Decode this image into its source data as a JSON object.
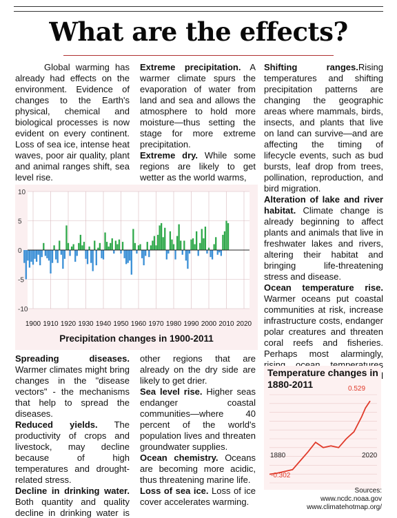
{
  "title": "What are the effects?",
  "col1_top": {
    "p1": "Global warming has already had effects on the environment. Evidence of changes to the Earth's physical, chemical and biological processes is now evident on every continent. Loss of sea ice, intense heat waves, poor air quality, plant and animal ranges shift, sea level rise."
  },
  "col2_top": {
    "extreme_precip_head": "Extreme precipitation.",
    "extreme_precip_body": " A warmer climate spurs the evaporation of water from land and sea and allows the atmosphere to hold more moisture—thus setting the stage for more extreme precipitation.",
    "extreme_dry_head": "Extreme dry.",
    "extreme_dry_body": " While some regions are likely to get wetter as the world warms,"
  },
  "col3": {
    "shifting_head": "Shifting ranges.",
    "shifting_body": "Rising temperatures and shifting precipitation patterns are changing the geographic areas where mammals, birds, insects, and plants that live on land can survive—and are affecting the timing of lifecycle events, such as bud bursts, leaf drop from trees, pollination, reproduction, and bird migration.",
    "alteration_head": "Alteration of lake and river habitat.",
    "alteration_body": " Climate change is already beginning to affect plants and animals that live in freshwater lakes and rivers, altering their habitat and bringing life-threatening stress and disease.",
    "ocean_temp_head": "Ocean temperature rise.",
    "ocean_temp_body": " Warmer oceans put coastal communities at risk, increase infrastructure costs, endanger polar creatures and threaten coral reefs and fisheries. Perhaps most alarmingly, rising ocean temperatures accelerate the overall warming trend."
  },
  "col1_bottom": {
    "spreading_head": "Spreading diseases.",
    "spreading_body": " Warmer climates might bring changes in the \"disease vectors\" - the mechanisms that help to spread the diseases.",
    "reduced_head": "Reduced yields.",
    "reduced_body": " The productivity of crops and livestock, may decline because of high temperatures and drought-related stress.",
    "decline_head": "Decline in drinking water.",
    "decline_body": " Both quantity and quality decline in drinking water is expected."
  },
  "col2_bottom": {
    "cont_body": "other regions that are already on the dry side are likely to get drier.",
    "sea_level_head": "Sea level rise.",
    "sea_level_body": " Higher seas endanger coastal communities—where 40 percent of the world's population lives and threaten groundwater supplies.",
    "ocean_chem_head": "Ocean chemistry.",
    "ocean_chem_body": " Oceans are becoming more acidic, thus threatening marine life.",
    "sea_ice_head": "Loss of sea ice.",
    "sea_ice_body": " Loss of ice cover accelerates warming."
  },
  "sources": {
    "label": "Sources:",
    "line1": "www.ncdc.noaa.gov",
    "line2": "www.climatehotmap.org/"
  },
  "colors": {
    "positive_bar": "#2fa84a",
    "negative_bar": "#3a8fd6",
    "temp_line": "#e03a2a",
    "temp_label": "#e03a2a"
  },
  "chart_data": [
    {
      "type": "bar",
      "title": "Precipitation changes in 1900-2011",
      "xlim": [
        1900,
        2020
      ],
      "ylim": [
        -10,
        10
      ],
      "x_ticks": [
        1900,
        1910,
        1920,
        1930,
        1940,
        1950,
        1960,
        1970,
        1980,
        1990,
        2000,
        2010,
        2020
      ],
      "y_ticks": [
        10,
        5,
        0,
        -5,
        -10
      ],
      "x": [
        1895,
        1896,
        1897,
        1898,
        1899,
        1900,
        1901,
        1902,
        1903,
        1904,
        1905,
        1906,
        1907,
        1908,
        1909,
        1910,
        1911,
        1912,
        1913,
        1914,
        1915,
        1916,
        1917,
        1918,
        1919,
        1920,
        1921,
        1922,
        1923,
        1924,
        1925,
        1926,
        1927,
        1928,
        1929,
        1930,
        1931,
        1932,
        1933,
        1934,
        1935,
        1936,
        1937,
        1938,
        1939,
        1940,
        1941,
        1942,
        1943,
        1944,
        1945,
        1946,
        1947,
        1948,
        1949,
        1950,
        1951,
        1952,
        1953,
        1954,
        1955,
        1956,
        1957,
        1958,
        1959,
        1960,
        1961,
        1962,
        1963,
        1964,
        1965,
        1966,
        1967,
        1968,
        1969,
        1970,
        1971,
        1972,
        1973,
        1974,
        1975,
        1976,
        1977,
        1978,
        1979,
        1980,
        1981,
        1982,
        1983,
        1984,
        1985,
        1986,
        1987,
        1988,
        1989,
        1990,
        1991,
        1992,
        1993,
        1994,
        1995,
        1996,
        1997,
        1998,
        1999,
        2000,
        2001,
        2002,
        2003,
        2004,
        2005,
        2006,
        2007,
        2008,
        2009,
        2010,
        2011
      ],
      "values": [
        -2.2,
        -5.0,
        -1.8,
        -3.0,
        -2.0,
        -2.5,
        -1.5,
        -2.0,
        -0.8,
        -2.6,
        -1.2,
        1.2,
        -1.0,
        -1.4,
        -1.8,
        -4.0,
        -2.2,
        0.8,
        -1.6,
        -2.2,
        1.6,
        -0.8,
        -3.2,
        -1.5,
        4.2,
        1.2,
        -1.0,
        0.6,
        1.0,
        -2.0,
        -1.0,
        1.2,
        2.6,
        0.8,
        1.4,
        -1.5,
        -2.4,
        0.6,
        -2.2,
        -3.6,
        1.6,
        -2.6,
        0.4,
        1.2,
        -1.4,
        -1.6,
        3.0,
        1.4,
        0.6,
        1.2,
        2.0,
        -0.6,
        1.6,
        1.0,
        1.8,
        -0.6,
        1.4,
        -1.4,
        -2.4,
        -2.2,
        -1.8,
        -4.2,
        3.6,
        1.2,
        -0.6,
        0.8,
        1.0,
        -1.4,
        -2.6,
        -1.0,
        1.4,
        -1.2,
        0.8,
        1.6,
        2.4,
        0.8,
        2.6,
        4.2,
        4.6,
        2.2,
        3.8,
        -1.6,
        -0.6,
        3.2,
        1.8,
        1.0,
        -1.6,
        2.4,
        4.4,
        1.6,
        -0.8,
        1.6,
        -1.8,
        -3.2,
        -0.6,
        1.8,
        2.0,
        1.0,
        3.2,
        -1.0,
        1.2,
        3.6,
        2.0,
        4.0,
        -0.6,
        0.4,
        -1.2,
        -1.6,
        1.0,
        2.2,
        -0.8,
        -0.4,
        -1.0,
        2.6,
        3.2,
        5.0,
        4.6
      ]
    },
    {
      "type": "line",
      "title": "Temperature changes in 1880-2011",
      "x_labels": [
        "1880",
        "2020"
      ],
      "annotations": [
        "0.529",
        "-0.302"
      ],
      "x": [
        1880,
        1890,
        1900,
        1910,
        1920,
        1930,
        1940,
        1950,
        1960,
        1970,
        1980,
        1990,
        2000,
        2005,
        2011
      ],
      "values": [
        -0.302,
        -0.29,
        -0.27,
        -0.25,
        -0.15,
        -0.05,
        0.06,
        0.0,
        0.02,
        0.0,
        0.1,
        0.18,
        0.35,
        0.45,
        0.529
      ]
    }
  ]
}
